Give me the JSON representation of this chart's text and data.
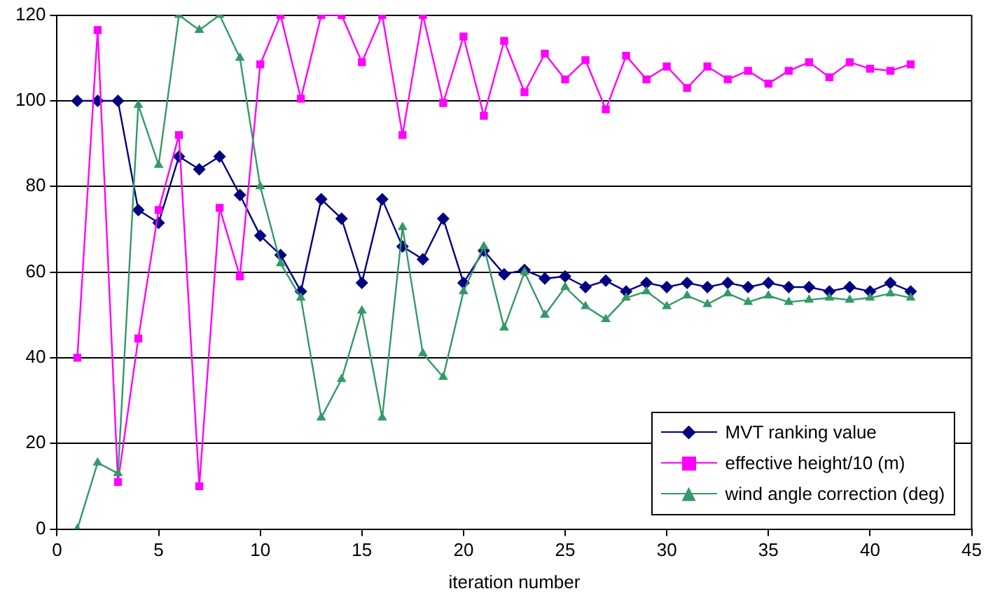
{
  "chart_data": {
    "type": "line",
    "xlabel": "iteration number",
    "x": [
      1,
      2,
      3,
      4,
      5,
      6,
      7,
      8,
      9,
      10,
      11,
      12,
      13,
      14,
      15,
      16,
      17,
      18,
      19,
      20,
      21,
      22,
      23,
      24,
      25,
      26,
      27,
      28,
      29,
      30,
      31,
      32,
      33,
      34,
      35,
      36,
      37,
      38,
      39,
      40,
      41,
      42
    ],
    "series": [
      {
        "name": "MVT ranking value",
        "color": "#000080",
        "marker": "diamond",
        "values": [
          100,
          100,
          100,
          74.5,
          71.5,
          87,
          84,
          87,
          78,
          68.5,
          64,
          55.5,
          77,
          72.5,
          57.5,
          77,
          66,
          63,
          72.5,
          57.5,
          65,
          59.5,
          60.5,
          58.5,
          59,
          56.5,
          58,
          55.5,
          57.5,
          56.5,
          57.5,
          56.5,
          57.5,
          56.5,
          57.5,
          56.5,
          56.5,
          55.5,
          56.5,
          55.5,
          57.5,
          55.5
        ]
      },
      {
        "name": "effective height/10 (m)",
        "color": "#ff00ff",
        "marker": "square",
        "values": [
          40,
          116.5,
          11,
          44.5,
          74.5,
          92,
          10,
          75,
          59,
          108.5,
          120,
          100.5,
          120,
          120,
          109,
          120,
          92,
          120,
          99.5,
          115,
          96.5,
          114,
          102,
          111,
          105,
          109.5,
          98,
          110.5,
          105,
          108,
          103,
          108,
          105,
          107,
          104,
          107,
          109,
          105.5,
          109,
          107.5,
          107,
          108.5
        ]
      },
      {
        "name": "wind angle correction (deg)",
        "color": "#339966",
        "marker": "triangle",
        "values": [
          0,
          15.5,
          13,
          99,
          85,
          120,
          116.5,
          120,
          110,
          80,
          62,
          54,
          26,
          35,
          51,
          26,
          70.5,
          41,
          35.5,
          55.5,
          66,
          47,
          60,
          50,
          56.5,
          52,
          49,
          54,
          55.5,
          52,
          54.5,
          52.5,
          55,
          53,
          54.5,
          53,
          53.5,
          54,
          53.5,
          54,
          55,
          54
        ]
      }
    ],
    "xlim": [
      0,
      45
    ],
    "xticks": [
      0,
      5,
      10,
      15,
      20,
      25,
      30,
      35,
      40,
      45
    ],
    "ylim": [
      0,
      120
    ],
    "yticks": [
      0,
      20,
      40,
      60,
      80,
      100,
      120
    ],
    "grid": "y",
    "legend": "bottom right",
    "line_style": "solid"
  }
}
